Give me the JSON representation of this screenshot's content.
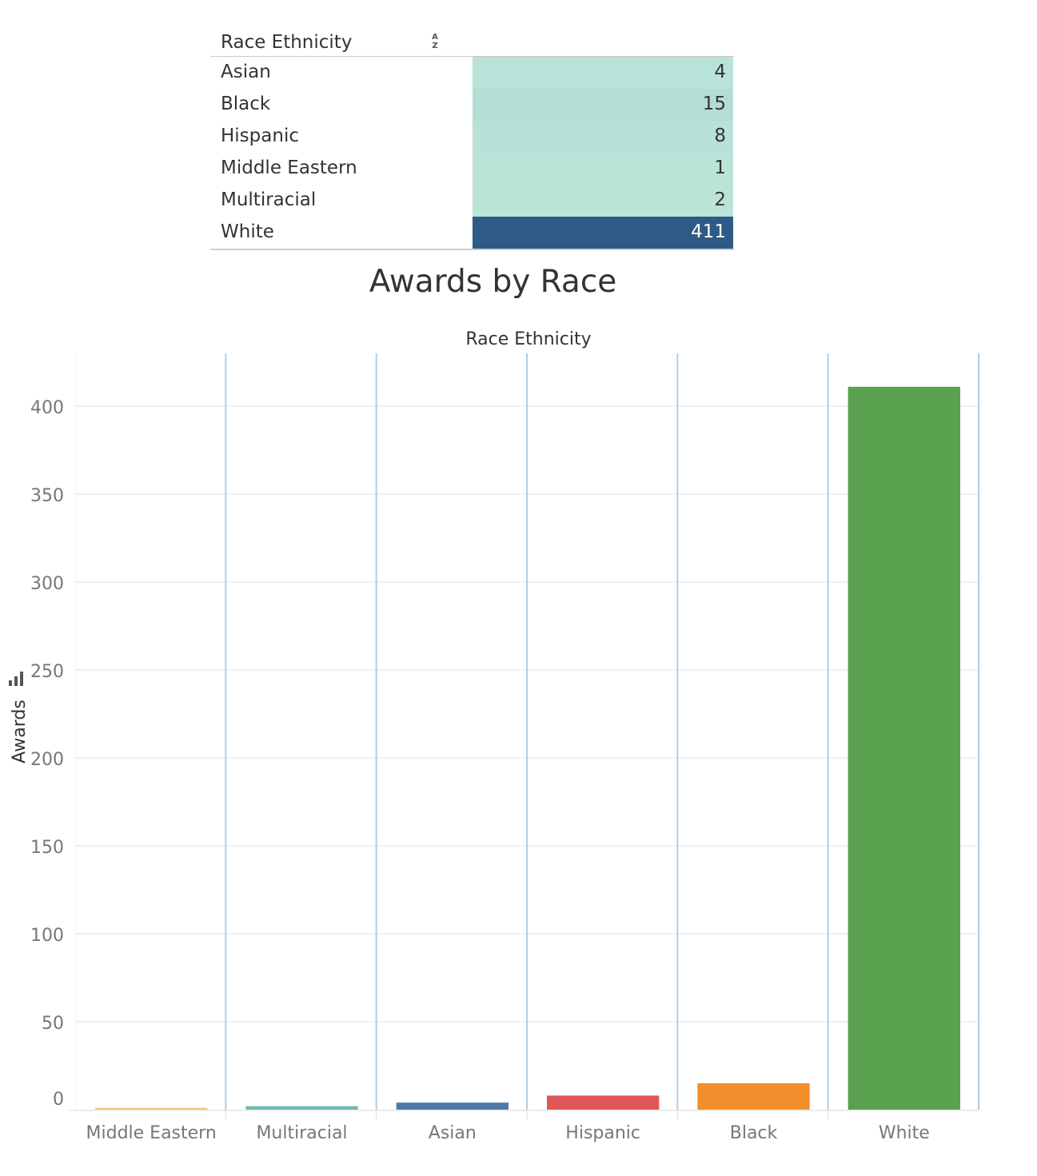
{
  "table": {
    "header": "Race Ethnicity",
    "sort_glyph_top": "A",
    "sort_glyph_bottom": "Z",
    "rows": [
      {
        "label": "Asian",
        "value": "4",
        "bg": "#b9e3d8",
        "fg": "#333333"
      },
      {
        "label": "Black",
        "value": "15",
        "bg": "#b3ded5",
        "fg": "#333333"
      },
      {
        "label": "Hispanic",
        "value": "8",
        "bg": "#b8e2d7",
        "fg": "#333333"
      },
      {
        "label": "Middle Eastern",
        "value": "1",
        "bg": "#bbe4d9",
        "fg": "#333333"
      },
      {
        "label": "Multiracial",
        "value": "2",
        "bg": "#bbe4d9",
        "fg": "#333333"
      },
      {
        "label": "White",
        "value": "411",
        "bg": "#2e5a86",
        "fg": "#ffffff"
      }
    ]
  },
  "chart_data": {
    "type": "bar",
    "title": "Awards by Race",
    "header_label": "Race Ethnicity",
    "ylabel": "Awards",
    "categories": [
      "Middle Eastern",
      "Multiracial",
      "Asian",
      "Hispanic",
      "Black",
      "White"
    ],
    "values": [
      1,
      2,
      4,
      8,
      15,
      411
    ],
    "colors": [
      "#f1c27d",
      "#76b7b2",
      "#4e79a7",
      "#e15759",
      "#f28e2b",
      "#59a14f"
    ],
    "ylim": [
      0,
      430
    ],
    "yticks": [
      0,
      50,
      100,
      150,
      200,
      250,
      300,
      350,
      400
    ],
    "grid": true
  }
}
